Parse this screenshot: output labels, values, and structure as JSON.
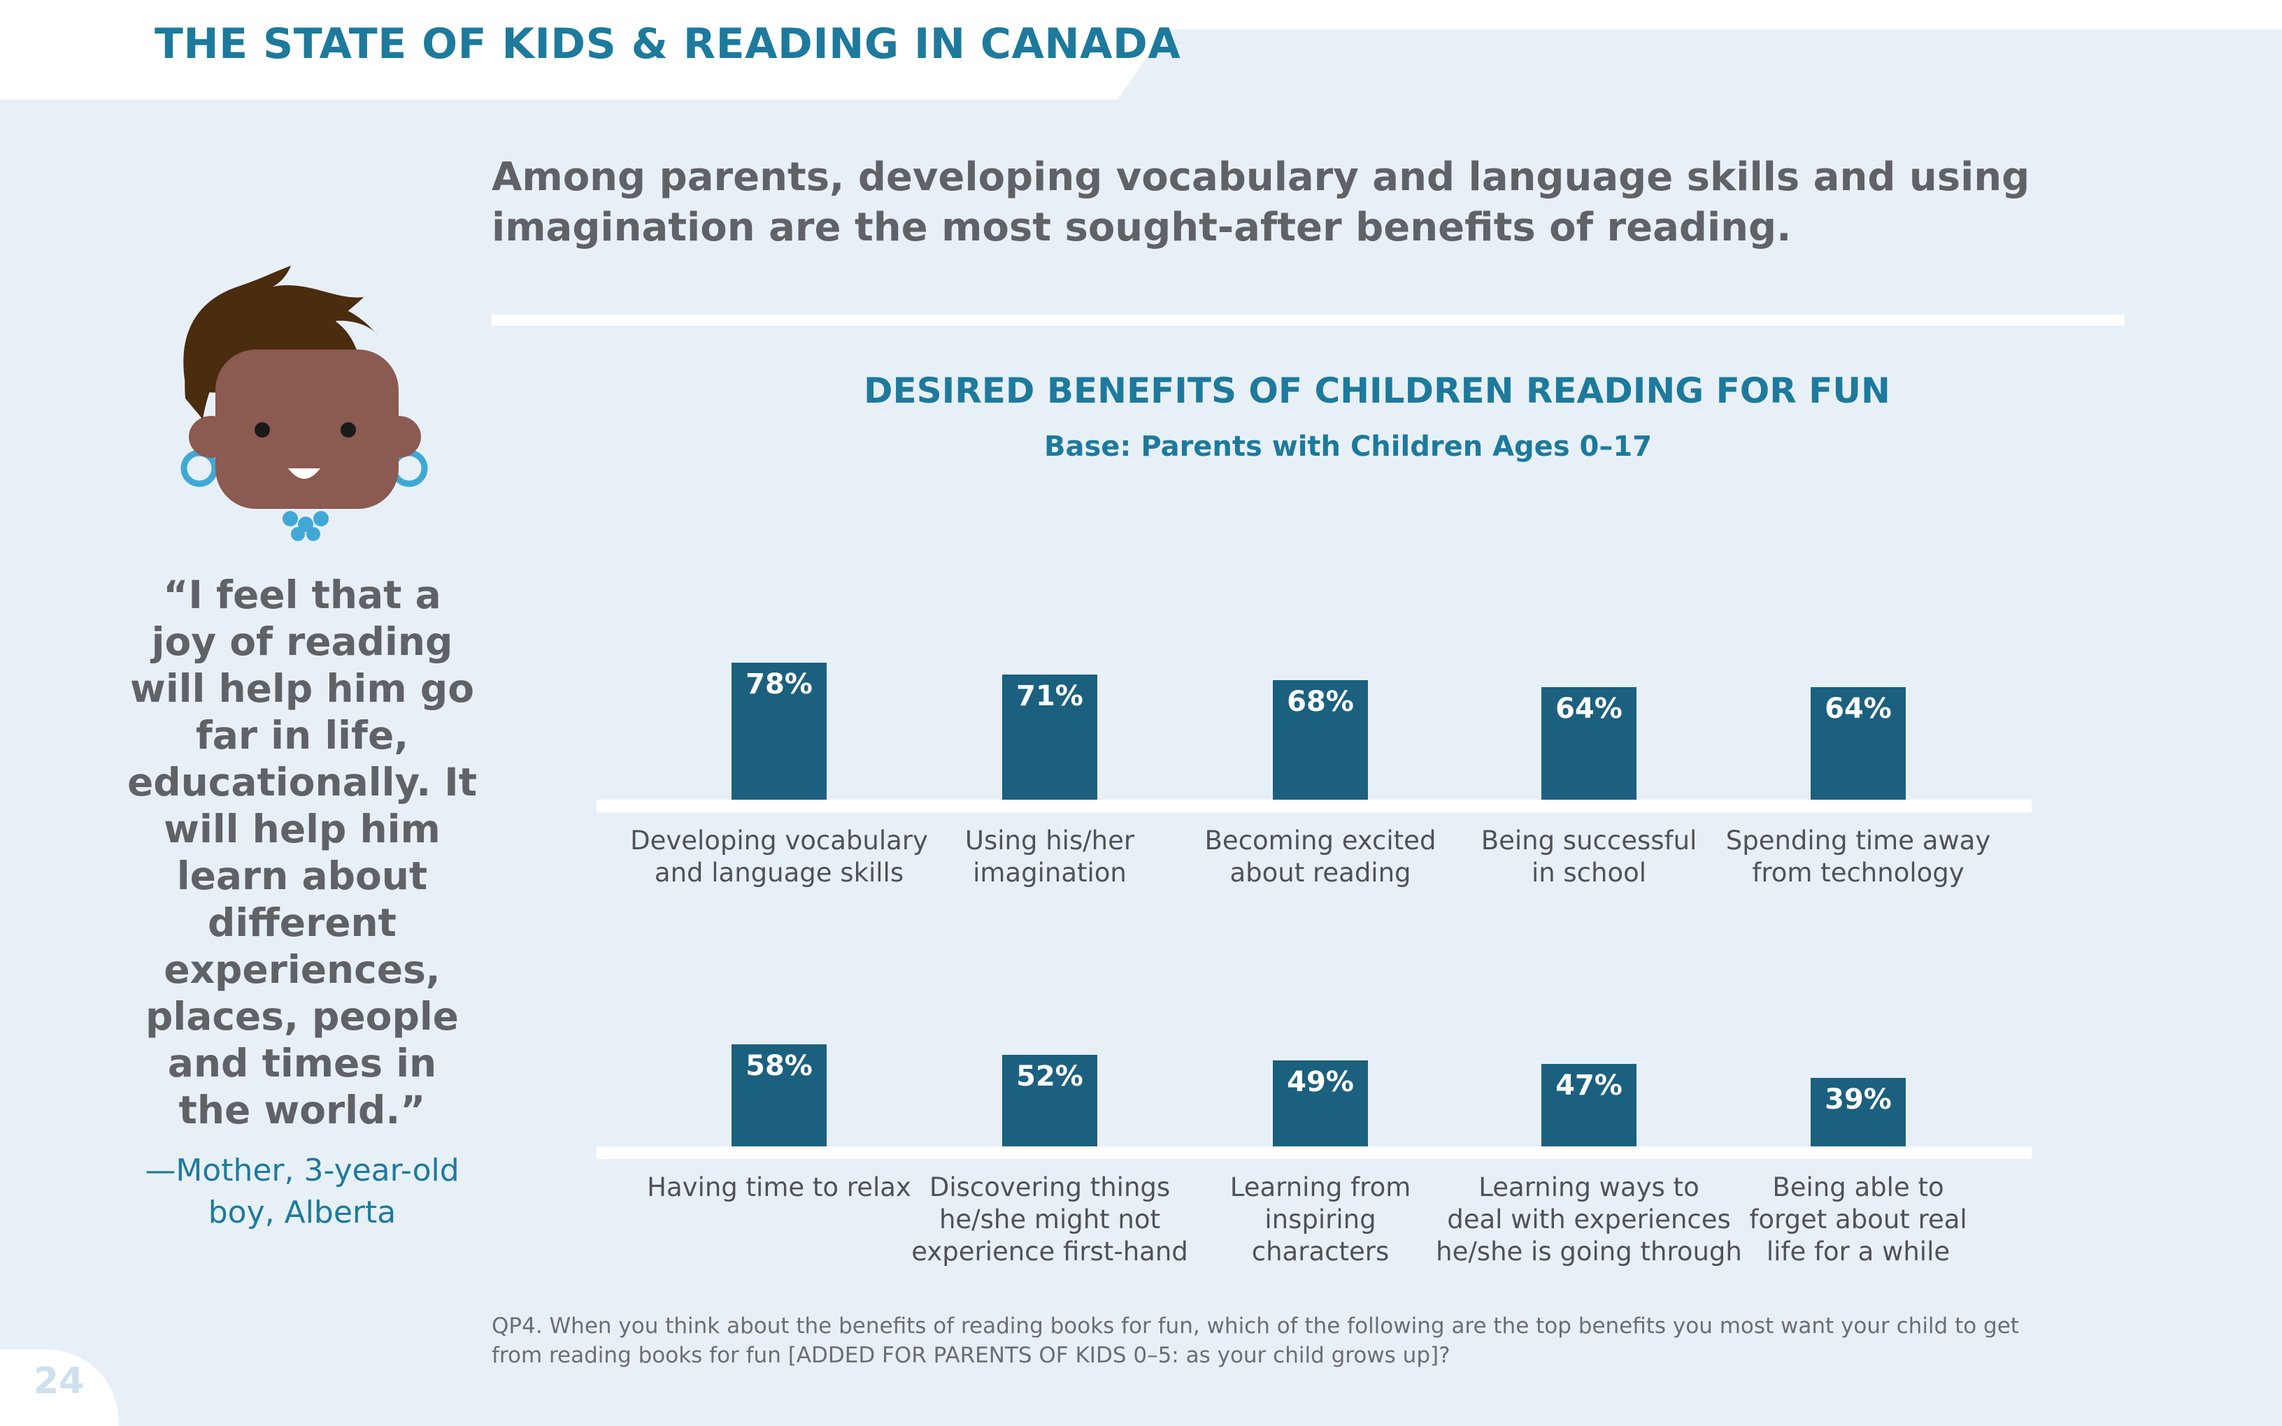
{
  "header": {
    "title": "THE STATE OF KIDS & READING IN CANADA"
  },
  "headline": "Among parents, developing vocabulary and language skills and using imagination are the most sought-after benefits of reading.",
  "quote": {
    "text": "“I feel that a joy of reading will help him go far in life, educationally. It will help him learn about different experiences, places, people and times in the world.”",
    "attribution": "—Mother, 3-year-old boy, Alberta"
  },
  "footnote": "QP4. When you think about the benefits of reading books for fun, which of the following are the top benefits you most want your child to get from reading books for fun [ADDED FOR PARENTS OF KIDS 0–5: as your child grows up]?",
  "page_number": "24",
  "colors": {
    "accent": "#1d7a9c",
    "bar": "#1b607f",
    "background": "#e8f0f7",
    "text": "#5f6266"
  },
  "chart_data": {
    "type": "bar",
    "title": "DESIRED BENEFITS OF CHILDREN READING FOR FUN",
    "subtitle": "Base: Parents with Children Ages 0–17",
    "unit": "%",
    "ylim": [
      0,
      100
    ],
    "grid": false,
    "categories": [
      "Developing vocabulary and language skills",
      "Using his/her imagination",
      "Becoming excited about reading",
      "Being successful in school",
      "Spending time away from technology",
      "Having time to relax",
      "Discovering things he/she might not experience first-hand",
      "Learning from inspiring characters",
      "Learning ways to deal with experiences he/she is going through",
      "Being able to forget about real life for a while"
    ],
    "values": [
      78,
      71,
      68,
      64,
      64,
      58,
      52,
      49,
      47,
      39
    ],
    "value_labels": [
      "78%",
      "71%",
      "68%",
      "64%",
      "64%",
      "58%",
      "52%",
      "49%",
      "47%",
      "39%"
    ],
    "label_lines": [
      [
        "Developing vocabulary",
        "and language skills"
      ],
      [
        "Using his/her",
        "imagination"
      ],
      [
        "Becoming excited",
        "about reading"
      ],
      [
        "Being successful",
        "in school"
      ],
      [
        "Spending time away",
        "from technology"
      ],
      [
        "Having time to relax"
      ],
      [
        "Discovering things",
        "he/she might not",
        "experience first-hand"
      ],
      [
        "Learning from",
        "inspiring",
        "characters"
      ],
      [
        "Learning ways to",
        "deal with experiences",
        "he/she is going through"
      ],
      [
        "Being able to",
        "forget about real",
        "life for a while"
      ]
    ]
  }
}
